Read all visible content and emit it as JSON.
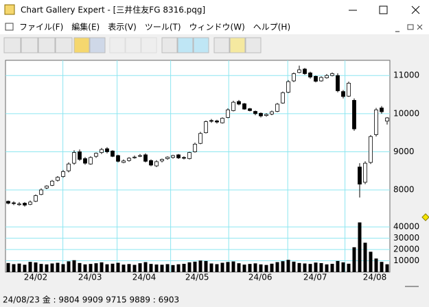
{
  "window": {
    "title": "Chart Gallery Expert - [三井住友FG 8316.pqg]",
    "menu": [
      "ファイル(F)",
      "編集(E)",
      "表示(V)",
      "ツール(T)",
      "ウィンドウ(W)",
      "ヘルプ(H)"
    ]
  },
  "status_bar": "24/08/23 金 : 9804 9909 9715 9889 : 6903",
  "chart_data": [
    {
      "type": "candlestick",
      "open": [
        7700,
        7660,
        7610,
        7650,
        7620,
        7700,
        7880,
        8050,
        8120,
        8250,
        8350,
        8500,
        8700,
        9000,
        8820,
        8680,
        8880,
        8980,
        9080,
        9020,
        8900,
        8720,
        8770,
        8850,
        8880,
        8920,
        8770,
        8630,
        8760,
        8820,
        8850,
        8920,
        8850,
        8820,
        9000,
        9220,
        9500,
        9820,
        9810,
        9760,
        9900,
        10080,
        10320,
        10260,
        10130,
        10060,
        10010,
        9950,
        9990,
        10060,
        10280,
        10560,
        10860,
        11080,
        11170,
        11070,
        10980,
        10860,
        10940,
        11000,
        11000,
        10580,
        10460,
        10350,
        8600,
        8200,
        8720,
        9450,
        10150,
        9804
      ],
      "high": [
        7720,
        7700,
        7680,
        7680,
        7720,
        7880,
        8040,
        8120,
        8260,
        8360,
        8520,
        8720,
        9040,
        9060,
        8860,
        8880,
        8980,
        9100,
        9120,
        9040,
        8920,
        8800,
        8860,
        8900,
        8940,
        8960,
        8800,
        8780,
        8820,
        8880,
        8920,
        8940,
        8880,
        9000,
        9240,
        9520,
        9820,
        9860,
        9840,
        9900,
        10140,
        10340,
        10360,
        10280,
        10150,
        10080,
        10030,
        10010,
        10080,
        10280,
        10580,
        10880,
        11080,
        11260,
        11200,
        11100,
        11000,
        10980,
        11040,
        11080,
        11060,
        10620,
        10840,
        10400,
        8700,
        8750,
        9440,
        10150,
        10200,
        9909
      ],
      "low": [
        7620,
        7600,
        7580,
        7560,
        7600,
        7680,
        7860,
        8020,
        8100,
        8220,
        8320,
        8460,
        8660,
        8760,
        8660,
        8660,
        8840,
        8940,
        8960,
        8860,
        8720,
        8700,
        8740,
        8820,
        8860,
        8720,
        8620,
        8600,
        8720,
        8790,
        8820,
        8810,
        8800,
        8800,
        8980,
        9200,
        9480,
        9760,
        9740,
        9740,
        9880,
        10060,
        10220,
        10100,
        10060,
        9960,
        9900,
        9920,
        9960,
        10040,
        10260,
        10540,
        10830,
        11060,
        11020,
        10920,
        10820,
        10840,
        10920,
        10980,
        10560,
        10400,
        10440,
        9550,
        7800,
        8150,
        8680,
        9400,
        10000,
        9715
      ],
      "close": [
        7650,
        7640,
        7630,
        7600,
        7680,
        7850,
        8000,
        8100,
        8230,
        8330,
        8480,
        8680,
        8980,
        8800,
        8700,
        8850,
        8960,
        9060,
        9000,
        8880,
        8750,
        8760,
        8830,
        8860,
        8900,
        8750,
        8650,
        8740,
        8800,
        8860,
        8900,
        8840,
        8830,
        8980,
        9200,
        9480,
        9790,
        9800,
        9780,
        9880,
        10100,
        10300,
        10250,
        10120,
        10080,
        10000,
        9940,
        9980,
        10050,
        10250,
        10550,
        10840,
        11050,
        11150,
        11050,
        10960,
        10850,
        10950,
        11000,
        11050,
        10600,
        10450,
        10800,
        9600,
        8150,
        8700,
        9400,
        10100,
        10050,
        9889
      ],
      "xlim": [
        -0.5,
        69.5
      ],
      "xticks": [
        {
          "value": 5,
          "label": "24/02"
        },
        {
          "value": 14.9,
          "label": "24/03"
        },
        {
          "value": 24.75,
          "label": "24/04"
        },
        {
          "value": 34.4,
          "label": "24/05"
        },
        {
          "value": 45.9,
          "label": "24/06"
        },
        {
          "value": 55.9,
          "label": "24/07"
        },
        {
          "value": 66.75,
          "label": "24/08"
        }
      ],
      "ylim": [
        7300,
        11400
      ],
      "yticks": [
        8000,
        9000,
        10000,
        11000
      ],
      "grid": true
    },
    {
      "type": "bar",
      "values": [
        8000,
        7000,
        7500,
        6500,
        9000,
        8500,
        7200,
        6800,
        7600,
        8200,
        7000,
        9500,
        10500,
        8000,
        6800,
        7200,
        7800,
        8600,
        6900,
        7400,
        8200,
        6600,
        7100,
        6400,
        7800,
        8800,
        7200,
        6700,
        6500,
        7000,
        6200,
        6900,
        7300,
        8600,
        9200,
        10200,
        9800,
        7600,
        7000,
        8200,
        8900,
        9400,
        7800,
        6600,
        7200,
        7700,
        6800,
        6300,
        7400,
        8800,
        9600,
        10800,
        9200,
        8000,
        7600,
        7200,
        8400,
        7900,
        6800,
        7300,
        9800,
        8600,
        7400,
        22000,
        44000,
        26000,
        18000,
        12000,
        9000,
        6903
      ],
      "color": "#000000",
      "xlim": [
        -0.5,
        69.5
      ],
      "ylim": [
        0,
        48000
      ],
      "yticks": [
        10000,
        20000,
        30000,
        40000
      ],
      "grid": true
    }
  ]
}
